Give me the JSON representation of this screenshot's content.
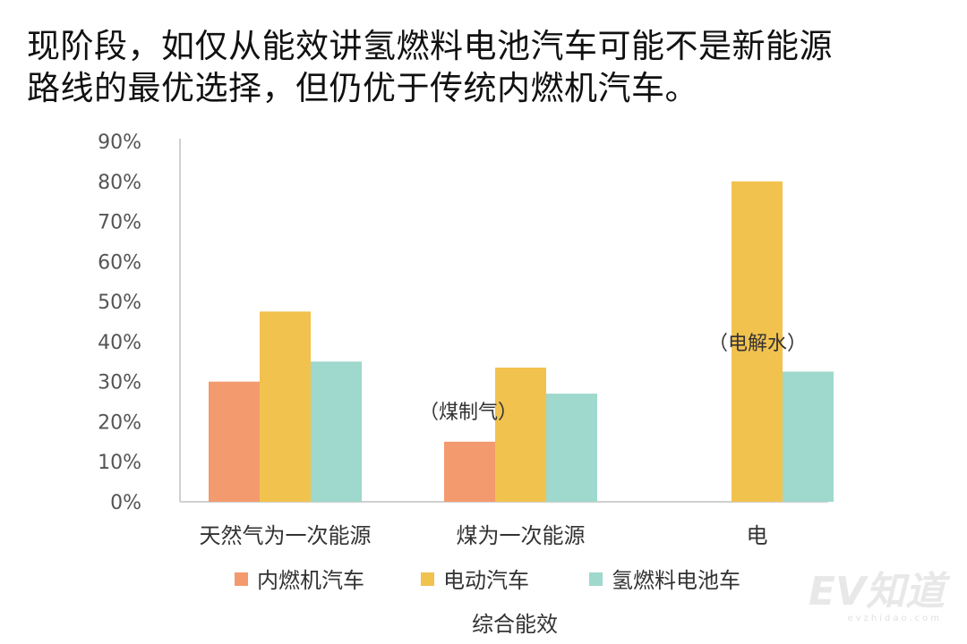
{
  "headline": {
    "line1": "现阶段，如仅从能效讲氢燃料电池汽车可能不是新能源",
    "line2": "路线的最优选择，但仍优于传统内燃机汽车。"
  },
  "watermark": {
    "logo_text": "EV知道",
    "sub_text": "evzhidao.com"
  },
  "chart_data": {
    "type": "bar",
    "categories": [
      "天然气为一次能源",
      "煤为一次能源",
      "电"
    ],
    "series": [
      {
        "name": "内燃机汽车",
        "color": "#f39a6e",
        "values": [
          30,
          15,
          null
        ]
      },
      {
        "name": "电动汽车",
        "color": "#f2c24f",
        "values": [
          47.5,
          33.5,
          80
        ]
      },
      {
        "name": "氢燃料电池车",
        "color": "#9fd8cc",
        "values": [
          35,
          27,
          32.5
        ]
      }
    ],
    "annotations": [
      "（煤制气）",
      "（电解水）"
    ],
    "xlabel": "综合能效",
    "ylabel": "",
    "yticks": [
      "0%",
      "10%",
      "20%",
      "30%",
      "40%",
      "50%",
      "60%",
      "70%",
      "80%",
      "90%"
    ],
    "ylim": [
      0,
      90
    ],
    "grid": false,
    "legend_position": "bottom"
  }
}
